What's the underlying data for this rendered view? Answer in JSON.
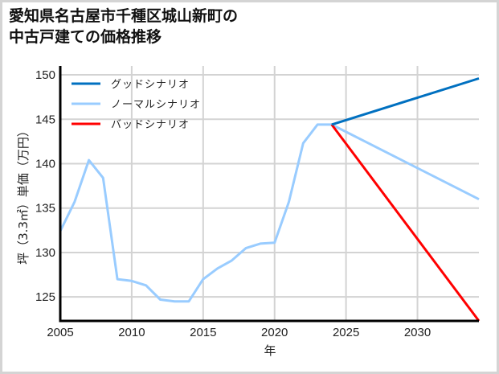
{
  "title": {
    "line1": "愛知県名古屋市千種区城山新町の",
    "line2": "中古戸建ての価格推移"
  },
  "colors": {
    "good": "#0070c0",
    "normal": "#99ccff",
    "bad": "#ff0000",
    "grid": "#d3d3d3",
    "axis": "#000000",
    "frame": "#d4d4d4"
  },
  "chart_data": {
    "type": "line",
    "title": "愛知県名古屋市千種区城山新町の中古戸建ての価格推移",
    "xlabel": "年",
    "ylabel": "坪（3.3㎡）単価（万円）",
    "xlim": [
      2005,
      2034.3
    ],
    "ylim": [
      122.3,
      151
    ],
    "xticks": [
      2005,
      2010,
      2015,
      2020,
      2025,
      2030
    ],
    "yticks": [
      125,
      130,
      135,
      140,
      145,
      150
    ],
    "grid": true,
    "legend_position": "upper left",
    "legend": [
      "グッドシナリオ",
      "ノーマルシナリオ",
      "バッドシナリオ"
    ],
    "series": [
      {
        "name": "ノーマルシナリオ (historical)",
        "color": "#99ccff",
        "x": [
          2005,
          2006,
          2007,
          2008,
          2009,
          2010,
          2011,
          2012,
          2013,
          2014,
          2015,
          2016,
          2017,
          2018,
          2019,
          2020,
          2021,
          2022,
          2023,
          2024
        ],
        "values": [
          132.4,
          135.7,
          140.4,
          138.4,
          127.0,
          126.8,
          126.3,
          124.7,
          124.5,
          124.5,
          127.0,
          128.2,
          129.1,
          130.5,
          131.0,
          131.1,
          135.7,
          142.3,
          144.4,
          144.4
        ]
      },
      {
        "name": "グッドシナリオ",
        "color": "#0070c0",
        "x": [
          2024,
          2034.3
        ],
        "values": [
          144.4,
          149.6
        ]
      },
      {
        "name": "ノーマルシナリオ",
        "color": "#99ccff",
        "x": [
          2024,
          2034.3
        ],
        "values": [
          144.4,
          136.0
        ]
      },
      {
        "name": "バッドシナリオ",
        "color": "#ff0000",
        "x": [
          2024,
          2034.3
        ],
        "values": [
          144.4,
          122.3
        ]
      }
    ]
  }
}
